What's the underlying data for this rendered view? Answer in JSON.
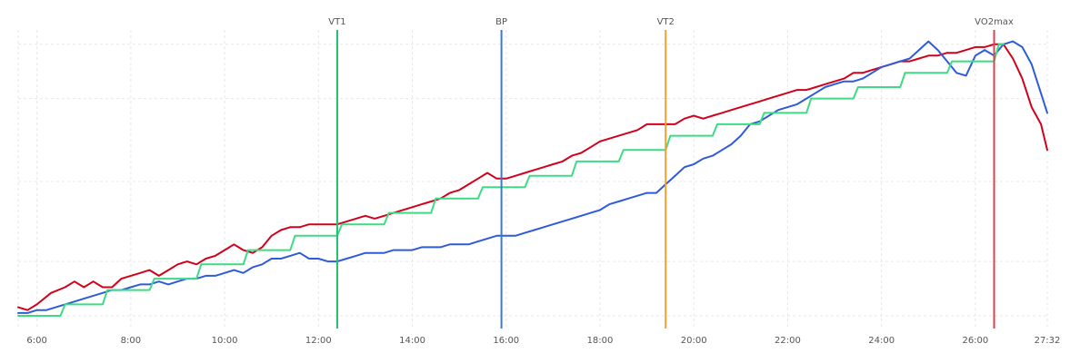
{
  "chart_data": {
    "type": "line",
    "xlabel": "",
    "ylabel": "",
    "x_unit": "min",
    "xlim": [
      5.6,
      27.533
    ],
    "ylim": [
      0,
      100
    ],
    "grid": true,
    "x_ticks": [
      {
        "value": 6,
        "label": "6:00"
      },
      {
        "value": 8,
        "label": "8:00"
      },
      {
        "value": 10,
        "label": "10:00"
      },
      {
        "value": 12,
        "label": "12:00"
      },
      {
        "value": 14,
        "label": "14:00"
      },
      {
        "value": 16,
        "label": "16:00"
      },
      {
        "value": 18,
        "label": "18:00"
      },
      {
        "value": 20,
        "label": "20:00"
      },
      {
        "value": 22,
        "label": "22:00"
      },
      {
        "value": 24,
        "label": "24:00"
      },
      {
        "value": 26,
        "label": "26:00"
      },
      {
        "value": 27.533,
        "label": "27:32"
      }
    ],
    "y_gridlines": [
      0,
      19,
      47,
      76,
      95
    ],
    "markers": [
      {
        "label": "VT1",
        "x": 12.4,
        "color": "#22c06a"
      },
      {
        "label": "BP",
        "x": 15.9,
        "color": "#3a78d8"
      },
      {
        "label": "VT2",
        "x": 19.4,
        "color": "#f0a030"
      },
      {
        "label": "VO2max",
        "x": 26.4,
        "color": "#e04050"
      }
    ],
    "series": [
      {
        "color": "#d0021b",
        "points": [
          [
            5.6,
            3
          ],
          [
            5.8,
            2
          ],
          [
            6.0,
            4
          ],
          [
            6.3,
            8
          ],
          [
            6.6,
            10
          ],
          [
            6.8,
            12
          ],
          [
            7.0,
            10
          ],
          [
            7.2,
            12
          ],
          [
            7.4,
            10
          ],
          [
            7.6,
            10
          ],
          [
            7.8,
            13
          ],
          [
            8.0,
            14
          ],
          [
            8.2,
            15
          ],
          [
            8.4,
            16
          ],
          [
            8.6,
            14
          ],
          [
            8.8,
            16
          ],
          [
            9.0,
            18
          ],
          [
            9.2,
            19
          ],
          [
            9.4,
            18
          ],
          [
            9.6,
            20
          ],
          [
            9.8,
            21
          ],
          [
            10.0,
            23
          ],
          [
            10.2,
            25
          ],
          [
            10.4,
            23
          ],
          [
            10.6,
            22
          ],
          [
            10.8,
            24
          ],
          [
            11.0,
            28
          ],
          [
            11.2,
            30
          ],
          [
            11.4,
            31
          ],
          [
            11.6,
            31
          ],
          [
            11.8,
            32
          ],
          [
            12.0,
            32
          ],
          [
            12.2,
            32
          ],
          [
            12.4,
            32
          ],
          [
            12.6,
            33
          ],
          [
            12.8,
            34
          ],
          [
            13.0,
            35
          ],
          [
            13.2,
            34
          ],
          [
            13.4,
            35
          ],
          [
            13.6,
            36
          ],
          [
            13.8,
            37
          ],
          [
            14.0,
            38
          ],
          [
            14.2,
            39
          ],
          [
            14.4,
            40
          ],
          [
            14.6,
            41
          ],
          [
            14.8,
            43
          ],
          [
            15.0,
            44
          ],
          [
            15.2,
            46
          ],
          [
            15.4,
            48
          ],
          [
            15.6,
            50
          ],
          [
            15.8,
            48
          ],
          [
            16.0,
            48
          ],
          [
            16.2,
            49
          ],
          [
            16.4,
            50
          ],
          [
            16.6,
            51
          ],
          [
            16.8,
            52
          ],
          [
            17.0,
            53
          ],
          [
            17.2,
            54
          ],
          [
            17.4,
            56
          ],
          [
            17.6,
            57
          ],
          [
            17.8,
            59
          ],
          [
            18.0,
            61
          ],
          [
            18.2,
            62
          ],
          [
            18.4,
            63
          ],
          [
            18.6,
            64
          ],
          [
            18.8,
            65
          ],
          [
            19.0,
            67
          ],
          [
            19.2,
            67
          ],
          [
            19.4,
            67
          ],
          [
            19.6,
            67
          ],
          [
            19.8,
            69
          ],
          [
            20.0,
            70
          ],
          [
            20.2,
            69
          ],
          [
            20.4,
            70
          ],
          [
            20.6,
            71
          ],
          [
            20.8,
            72
          ],
          [
            21.0,
            73
          ],
          [
            21.2,
            74
          ],
          [
            21.4,
            75
          ],
          [
            21.6,
            76
          ],
          [
            21.8,
            77
          ],
          [
            22.0,
            78
          ],
          [
            22.2,
            79
          ],
          [
            22.4,
            79
          ],
          [
            22.6,
            80
          ],
          [
            22.8,
            81
          ],
          [
            23.0,
            82
          ],
          [
            23.2,
            83
          ],
          [
            23.4,
            85
          ],
          [
            23.6,
            85
          ],
          [
            23.8,
            86
          ],
          [
            24.0,
            87
          ],
          [
            24.2,
            88
          ],
          [
            24.4,
            89
          ],
          [
            24.6,
            89
          ],
          [
            24.8,
            90
          ],
          [
            25.0,
            91
          ],
          [
            25.2,
            91
          ],
          [
            25.4,
            92
          ],
          [
            25.6,
            92
          ],
          [
            25.8,
            93
          ],
          [
            26.0,
            94
          ],
          [
            26.2,
            94
          ],
          [
            26.4,
            95
          ],
          [
            26.6,
            95
          ],
          [
            26.8,
            90
          ],
          [
            27.0,
            83
          ],
          [
            27.2,
            73
          ],
          [
            27.4,
            67
          ],
          [
            27.533,
            58
          ]
        ]
      },
      {
        "color": "#2e5bd8",
        "points": [
          [
            5.6,
            1
          ],
          [
            5.8,
            1
          ],
          [
            6.0,
            2
          ],
          [
            6.2,
            2
          ],
          [
            6.4,
            3
          ],
          [
            6.6,
            4
          ],
          [
            6.8,
            5
          ],
          [
            7.0,
            6
          ],
          [
            7.2,
            7
          ],
          [
            7.4,
            8
          ],
          [
            7.6,
            9
          ],
          [
            7.8,
            9
          ],
          [
            8.0,
            10
          ],
          [
            8.2,
            11
          ],
          [
            8.4,
            11
          ],
          [
            8.6,
            12
          ],
          [
            8.8,
            11
          ],
          [
            9.0,
            12
          ],
          [
            9.2,
            13
          ],
          [
            9.4,
            13
          ],
          [
            9.6,
            14
          ],
          [
            9.8,
            14
          ],
          [
            10.0,
            15
          ],
          [
            10.2,
            16
          ],
          [
            10.4,
            15
          ],
          [
            10.6,
            17
          ],
          [
            10.8,
            18
          ],
          [
            11.0,
            20
          ],
          [
            11.2,
            20
          ],
          [
            11.4,
            21
          ],
          [
            11.6,
            22
          ],
          [
            11.8,
            20
          ],
          [
            12.0,
            20
          ],
          [
            12.2,
            19
          ],
          [
            12.4,
            19
          ],
          [
            12.6,
            20
          ],
          [
            12.8,
            21
          ],
          [
            13.0,
            22
          ],
          [
            13.2,
            22
          ],
          [
            13.4,
            22
          ],
          [
            13.6,
            23
          ],
          [
            13.8,
            23
          ],
          [
            14.0,
            23
          ],
          [
            14.2,
            24
          ],
          [
            14.4,
            24
          ],
          [
            14.6,
            24
          ],
          [
            14.8,
            25
          ],
          [
            15.0,
            25
          ],
          [
            15.2,
            25
          ],
          [
            15.4,
            26
          ],
          [
            15.6,
            27
          ],
          [
            15.8,
            28
          ],
          [
            16.0,
            28
          ],
          [
            16.2,
            28
          ],
          [
            16.4,
            29
          ],
          [
            16.6,
            30
          ],
          [
            16.8,
            31
          ],
          [
            17.0,
            32
          ],
          [
            17.2,
            33
          ],
          [
            17.4,
            34
          ],
          [
            17.6,
            35
          ],
          [
            17.8,
            36
          ],
          [
            18.0,
            37
          ],
          [
            18.2,
            39
          ],
          [
            18.4,
            40
          ],
          [
            18.6,
            41
          ],
          [
            18.8,
            42
          ],
          [
            19.0,
            43
          ],
          [
            19.2,
            43
          ],
          [
            19.4,
            46
          ],
          [
            19.6,
            49
          ],
          [
            19.8,
            52
          ],
          [
            20.0,
            53
          ],
          [
            20.2,
            55
          ],
          [
            20.4,
            56
          ],
          [
            20.6,
            58
          ],
          [
            20.8,
            60
          ],
          [
            21.0,
            63
          ],
          [
            21.2,
            67
          ],
          [
            21.4,
            68
          ],
          [
            21.6,
            70
          ],
          [
            21.8,
            72
          ],
          [
            22.0,
            73
          ],
          [
            22.2,
            74
          ],
          [
            22.4,
            76
          ],
          [
            22.6,
            78
          ],
          [
            22.8,
            80
          ],
          [
            23.0,
            81
          ],
          [
            23.2,
            82
          ],
          [
            23.4,
            82
          ],
          [
            23.6,
            83
          ],
          [
            23.8,
            85
          ],
          [
            24.0,
            87
          ],
          [
            24.2,
            88
          ],
          [
            24.4,
            89
          ],
          [
            24.6,
            90
          ],
          [
            24.8,
            93
          ],
          [
            25.0,
            96
          ],
          [
            25.2,
            93
          ],
          [
            25.4,
            89
          ],
          [
            25.6,
            85
          ],
          [
            25.8,
            84
          ],
          [
            26.0,
            91
          ],
          [
            26.2,
            93
          ],
          [
            26.4,
            91
          ],
          [
            26.6,
            95
          ],
          [
            26.8,
            96
          ],
          [
            27.0,
            94
          ],
          [
            27.2,
            88
          ],
          [
            27.533,
            71
          ]
        ]
      },
      {
        "color": "#3ddc84",
        "points": [
          [
            5.6,
            0
          ],
          [
            6.5,
            0
          ],
          [
            6.6,
            4
          ],
          [
            7.4,
            4
          ],
          [
            7.5,
            9
          ],
          [
            8.4,
            9
          ],
          [
            8.5,
            13
          ],
          [
            9.4,
            13
          ],
          [
            9.5,
            18
          ],
          [
            10.4,
            18
          ],
          [
            10.5,
            23
          ],
          [
            11.4,
            23
          ],
          [
            11.5,
            28
          ],
          [
            12.4,
            28
          ],
          [
            12.5,
            32
          ],
          [
            13.4,
            32
          ],
          [
            13.5,
            36
          ],
          [
            14.4,
            36
          ],
          [
            14.5,
            41
          ],
          [
            15.4,
            41
          ],
          [
            15.5,
            45
          ],
          [
            16.4,
            45
          ],
          [
            16.5,
            49
          ],
          [
            17.4,
            49
          ],
          [
            17.5,
            54
          ],
          [
            18.4,
            54
          ],
          [
            18.5,
            58
          ],
          [
            19.4,
            58
          ],
          [
            19.5,
            63
          ],
          [
            20.4,
            63
          ],
          [
            20.5,
            67
          ],
          [
            21.4,
            67
          ],
          [
            21.5,
            71
          ],
          [
            22.4,
            71
          ],
          [
            22.5,
            76
          ],
          [
            23.4,
            76
          ],
          [
            23.5,
            80
          ],
          [
            24.4,
            80
          ],
          [
            24.5,
            85
          ],
          [
            25.4,
            85
          ],
          [
            25.5,
            89
          ],
          [
            26.4,
            89
          ],
          [
            26.5,
            95
          ],
          [
            26.6,
            95
          ]
        ]
      }
    ]
  }
}
